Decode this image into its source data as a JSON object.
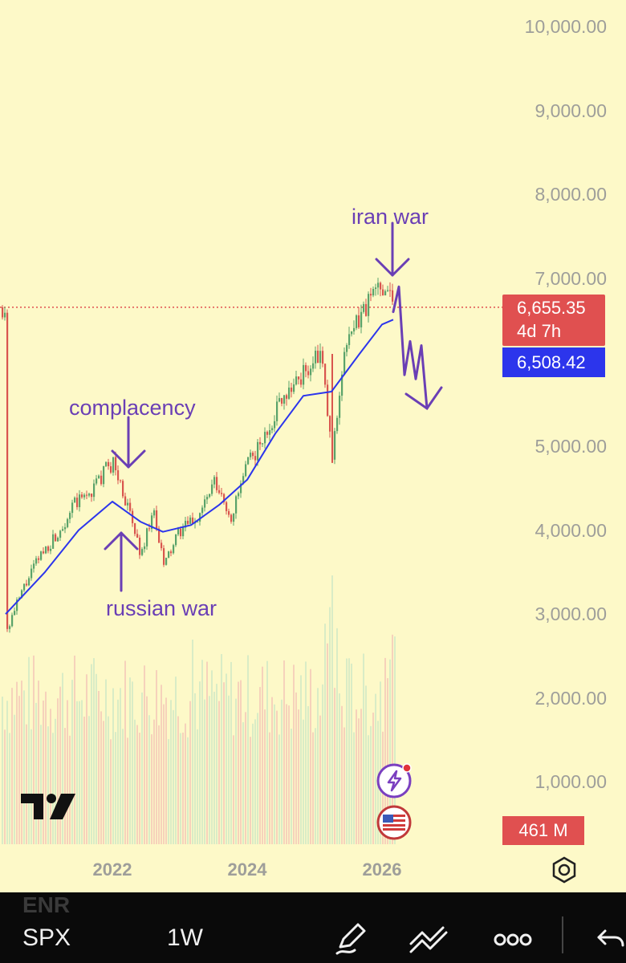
{
  "chart_data": {
    "type": "candlestick",
    "symbol": "SPX",
    "interval": "1W",
    "y_axis": {
      "ticks": [
        "10,000.00",
        "9,000.00",
        "8,000.00",
        "7,000.00",
        "5,000.00",
        "4,000.00",
        "3,000.00",
        "2,000.00",
        "1,000.00"
      ],
      "tick_values": [
        10000,
        9000,
        8000,
        7000,
        5000,
        4000,
        3000,
        2000,
        1000
      ],
      "range": [
        0,
        10300
      ]
    },
    "x_axis": {
      "ticks": [
        "2022",
        "2024",
        "2026"
      ],
      "range": [
        "2020-06",
        "2026-10"
      ]
    },
    "price_series": [
      {
        "date": "2020-06",
        "value": 2800
      },
      {
        "date": "2020-09",
        "value": 3300
      },
      {
        "date": "2020-12",
        "value": 3700
      },
      {
        "date": "2021-03",
        "value": 3950
      },
      {
        "date": "2021-06",
        "value": 4300
      },
      {
        "date": "2021-09",
        "value": 4450
      },
      {
        "date": "2021-12",
        "value": 4750
      },
      {
        "date": "2022-01",
        "value": 4800
      },
      {
        "date": "2022-03",
        "value": 4400
      },
      {
        "date": "2022-06",
        "value": 3700
      },
      {
        "date": "2022-08",
        "value": 4250
      },
      {
        "date": "2022-10",
        "value": 3580
      },
      {
        "date": "2023-01",
        "value": 4000
      },
      {
        "date": "2023-04",
        "value": 4150
      },
      {
        "date": "2023-07",
        "value": 4550
      },
      {
        "date": "2023-10",
        "value": 4150
      },
      {
        "date": "2024-01",
        "value": 4800
      },
      {
        "date": "2024-04",
        "value": 5100
      },
      {
        "date": "2024-07",
        "value": 5600
      },
      {
        "date": "2024-10",
        "value": 5800
      },
      {
        "date": "2025-02",
        "value": 6100
      },
      {
        "date": "2025-04",
        "value": 4850
      },
      {
        "date": "2025-06",
        "value": 6100
      },
      {
        "date": "2025-09",
        "value": 6550
      },
      {
        "date": "2025-12",
        "value": 6900
      },
      {
        "date": "2026-02",
        "value": 6950
      },
      {
        "date": "2026-03",
        "value": 6655
      }
    ],
    "moving_average": {
      "value": "6,508.42",
      "color": "#2c35ec",
      "points": [
        {
          "date": "2020-06",
          "value": 3000
        },
        {
          "date": "2021-01",
          "value": 3500
        },
        {
          "date": "2021-07",
          "value": 4000
        },
        {
          "date": "2022-01",
          "value": 4340
        },
        {
          "date": "2022-06",
          "value": 4100
        },
        {
          "date": "2022-10",
          "value": 3980
        },
        {
          "date": "2023-03",
          "value": 4060
        },
        {
          "date": "2023-08",
          "value": 4300
        },
        {
          "date": "2024-01",
          "value": 4600
        },
        {
          "date": "2024-06",
          "value": 5150
        },
        {
          "date": "2024-11",
          "value": 5600
        },
        {
          "date": "2025-04",
          "value": 5650
        },
        {
          "date": "2025-09",
          "value": 6100
        },
        {
          "date": "2026-01",
          "value": 6450
        },
        {
          "date": "2026-03",
          "value": 6508
        }
      ]
    },
    "last_price": {
      "value": "6,655.35",
      "countdown": "4d 7h",
      "color": "#e05050"
    },
    "volume": {
      "last": "461 M",
      "up_color": "#cfe8c6",
      "down_color": "#f4c8b8"
    },
    "annotations": [
      {
        "text": "complacency",
        "date": "2022-01",
        "value": 4800,
        "arrow": "down"
      },
      {
        "text": "russian war",
        "date": "2022-03",
        "value": 4400,
        "arrow": "up"
      },
      {
        "text": "iran war",
        "date": "2026-02",
        "value": 6950,
        "arrow": "down"
      }
    ],
    "projection": {
      "color": "#6a3fb5",
      "points": [
        {
          "date": "2026-03",
          "value": 6600
        },
        {
          "date": "2026-04",
          "value": 6900
        },
        {
          "date": "2026-05",
          "value": 5850
        },
        {
          "date": "2026-06",
          "value": 6250
        },
        {
          "date": "2026-07",
          "value": 5800
        },
        {
          "date": "2026-08",
          "value": 6200
        },
        {
          "date": "2026-09",
          "value": 5450
        }
      ]
    }
  },
  "colors": {
    "background": "#fdf9c8",
    "up": "#5aa36a",
    "down": "#d9554e",
    "axis_text": "#9e9e9a",
    "annotation": "#6a3fb5"
  },
  "icons": {
    "logo": "tradingview-logo-icon",
    "events": "lightning-event-icon",
    "economy": "us-flag-icon",
    "settings": "gear-icon"
  },
  "bottom_bar": {
    "ghost_text": "ENR",
    "symbol": "SPX",
    "interval": "1W",
    "icons": [
      "pencil-icon",
      "drawing-tools-icon",
      "more-icon",
      "undo-icon"
    ]
  }
}
